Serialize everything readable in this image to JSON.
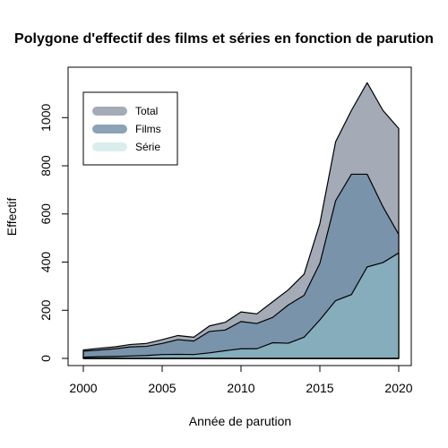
{
  "chart_data": {
    "type": "area",
    "title": "Polygone d'effectif des films et séries en fonction de parution",
    "xlabel": "Année de parution",
    "ylabel": "Effectif",
    "xlim": [
      2000,
      2020
    ],
    "ylim": [
      0,
      1150
    ],
    "x_ticks": [
      2000,
      2005,
      2010,
      2015,
      2020
    ],
    "y_ticks": [
      0,
      200,
      400,
      600,
      800,
      1000
    ],
    "grid": false,
    "legend_position": "top-left",
    "x": [
      2000,
      2001,
      2002,
      2003,
      2004,
      2005,
      2006,
      2007,
      2008,
      2009,
      2010,
      2011,
      2012,
      2013,
      2014,
      2015,
      2016,
      2017,
      2018,
      2019,
      2020
    ],
    "series": [
      {
        "name": "Total",
        "color": "#a4abb7",
        "values": [
          35,
          42,
          48,
          58,
          62,
          78,
          95,
          88,
          135,
          150,
          193,
          185,
          235,
          285,
          350,
          560,
          900,
          1030,
          1145,
          1030,
          955
        ]
      },
      {
        "name": "Films",
        "color": "#7993ab",
        "values": [
          30,
          35,
          40,
          48,
          50,
          62,
          78,
          72,
          112,
          118,
          153,
          145,
          170,
          222,
          262,
          395,
          655,
          765,
          765,
          630,
          515
        ]
      },
      {
        "name": "Série",
        "color": "#86adbb",
        "legend_color": "#d4eaeb",
        "values": [
          5,
          7,
          8,
          10,
          12,
          16,
          17,
          16,
          23,
          32,
          40,
          40,
          65,
          63,
          88,
          160,
          240,
          265,
          380,
          398,
          438
        ]
      }
    ]
  }
}
